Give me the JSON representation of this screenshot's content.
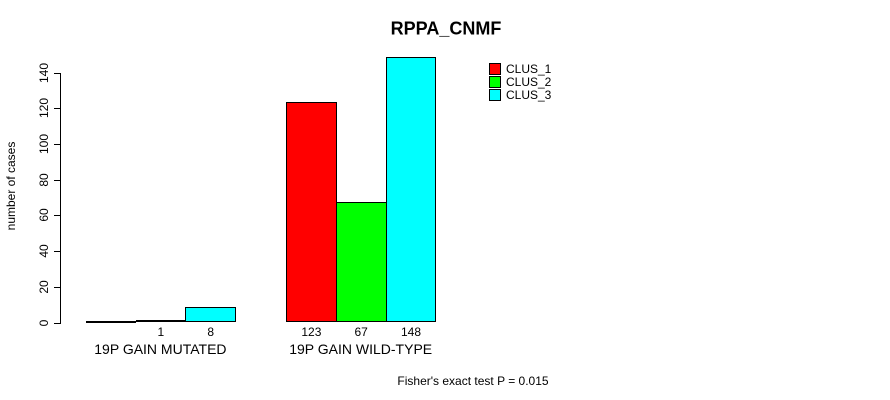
{
  "chart_data": {
    "type": "bar",
    "title": "RPPA_CNMF",
    "xlabel": "",
    "ylabel": "number of cases",
    "ylim": [
      0,
      140
    ],
    "yticks": [
      0,
      20,
      40,
      60,
      80,
      100,
      120,
      140
    ],
    "categories": [
      "19P GAIN MUTATED",
      "19P GAIN WILD-TYPE"
    ],
    "series": [
      {
        "name": "CLUS_1",
        "color": "#ff0000",
        "values": [
          0,
          123
        ],
        "bar_labels": [
          "",
          "123"
        ]
      },
      {
        "name": "CLUS_2",
        "color": "#00ff00",
        "values": [
          1,
          67
        ],
        "bar_labels": [
          "1",
          "67"
        ]
      },
      {
        "name": "CLUS_3",
        "color": "#00ffff",
        "values": [
          8,
          148
        ],
        "bar_labels": [
          "8",
          "148"
        ]
      }
    ],
    "legend": {
      "position": "top-right",
      "entries": [
        "CLUS_1",
        "CLUS_2",
        "CLUS_3"
      ]
    },
    "annotation": "Fisher's exact test P = 0.015",
    "grid": false,
    "bar_border_color": "#000000",
    "axis_color": "#000000",
    "background_color": "#ffffff"
  }
}
